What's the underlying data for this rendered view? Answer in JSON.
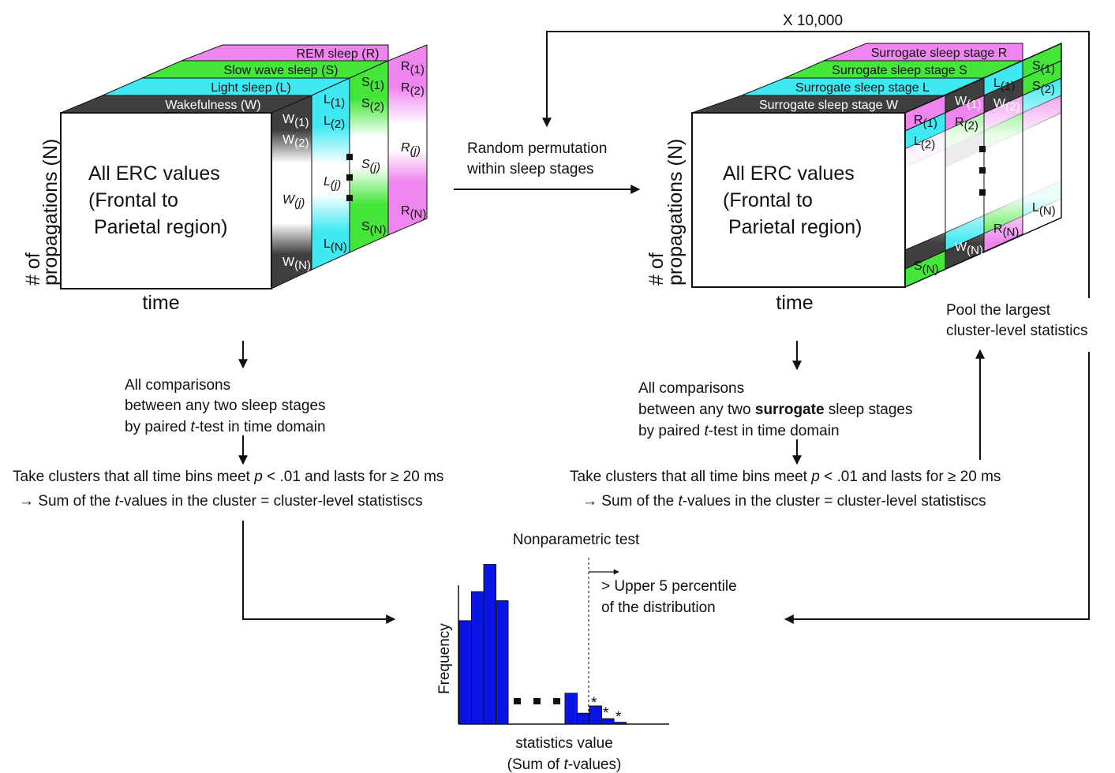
{
  "colors": {
    "wake": "#3f3f3f",
    "light": "#3ee9f2",
    "slow": "#44e63a",
    "rem": "#ef85ee",
    "bar": "#0a14e6"
  },
  "left_cube": {
    "front_lines": [
      "All ERC values",
      "(Frontal to",
      " Parietal region)"
    ],
    "y_axis_line1": "# of",
    "y_axis_line2": "propagations (N)",
    "x_axis": "time",
    "top_labels": {
      "rem": "REM sleep (R)",
      "slow": "Slow wave sleep (S)",
      "light": "Light sleep (L)",
      "wake": "Wakefulness (W)"
    },
    "cells": {
      "w": [
        "W",
        "W",
        "W",
        "W"
      ],
      "w_sub": [
        "(1)",
        "(2)",
        "(j)",
        "(N)"
      ],
      "l": [
        "L",
        "L",
        "L",
        "L"
      ],
      "l_sub": [
        "(1)",
        "(2)",
        "(j)",
        "(N)"
      ],
      "s": [
        "S",
        "S",
        "S",
        "S"
      ],
      "s_sub": [
        "(1)",
        "(2)",
        "(j)",
        "(N)"
      ],
      "r": [
        "R",
        "R",
        "R",
        "R"
      ],
      "r_sub": [
        "(1)",
        "(2)",
        "(j)",
        "(N)"
      ]
    }
  },
  "right_cube": {
    "front_lines": [
      "All ERC values",
      "(Frontal to",
      " Parietal region)"
    ],
    "y_axis_line1": "# of",
    "y_axis_line2": "propagations (N)",
    "x_axis": "time",
    "top_labels": {
      "rem": "Surrogate sleep stage R",
      "slow": "Surrogate sleep stage S",
      "light": "Surrogate sleep stage L",
      "wake": "Surrogate sleep stage W"
    },
    "cells": [
      {
        "t": "W",
        "s": "(1)"
      },
      {
        "t": "L",
        "s": "(1)"
      },
      {
        "t": "S",
        "s": "(1)"
      },
      {
        "t": "W",
        "s": "(2)"
      },
      {
        "t": "S",
        "s": "(2)"
      },
      {
        "t": "R",
        "s": "(1)"
      },
      {
        "t": "R",
        "s": "(2)"
      },
      {
        "t": "L",
        "s": "(2)"
      },
      {
        "t": "L",
        "s": "(N)"
      },
      {
        "t": "R",
        "s": "(N)"
      },
      {
        "t": "W",
        "s": "(N)"
      },
      {
        "t": "S",
        "s": "(N)"
      }
    ]
  },
  "permutation": {
    "line1": "Random permutation",
    "line2": "within sleep stages",
    "repeat": "X 10,000"
  },
  "left_steps": {
    "line1": "All comparisons",
    "line2": "between any two sleep stages",
    "line3_pre": "by paired ",
    "line3_it": "t",
    "line3_post": "-test in time domain",
    "cluster1_pre": "Take clusters that all time bins meet ",
    "cluster1_it": "p",
    "cluster1_post": " < .01 and lasts for ≥ 20 ms",
    "cluster2_pre": "→ Sum of the ",
    "cluster2_it": "t",
    "cluster2_post": "-values in the cluster = cluster-level statistiscs"
  },
  "right_steps": {
    "line1": "All comparisons",
    "line2_pre": "between any two ",
    "line2_bold": "surrogate",
    "line2_post": " sleep stages",
    "line3_pre": "by paired ",
    "line3_it": "t",
    "line3_post": "-test in time domain",
    "cluster1_pre": "Take clusters that all time bins meet ",
    "cluster1_it": "p",
    "cluster1_post": " < .01 and lasts for ≥ 20 ms",
    "cluster2_pre": "→ Sum of the ",
    "cluster2_it": "t",
    "cluster2_post": "-values in the cluster = cluster-level statistiscs",
    "pool1": "Pool the largest",
    "pool2": "cluster-level statistics"
  },
  "histogram": {
    "title": "Nonparametric test",
    "ylabel": "Frequency",
    "xlabel1": "statistics value",
    "xlabel2_pre": "(Sum of ",
    "xlabel2_it": "t",
    "xlabel2_post": "-values)",
    "threshold1": "> Upper 5 percentile",
    "threshold2": "of the distribution",
    "star": "*",
    "left_bars": [
      0.57,
      0.73,
      0.88,
      0.68
    ],
    "right_bars": [
      0.17,
      0.06,
      0.1,
      0.03,
      0.01
    ]
  }
}
